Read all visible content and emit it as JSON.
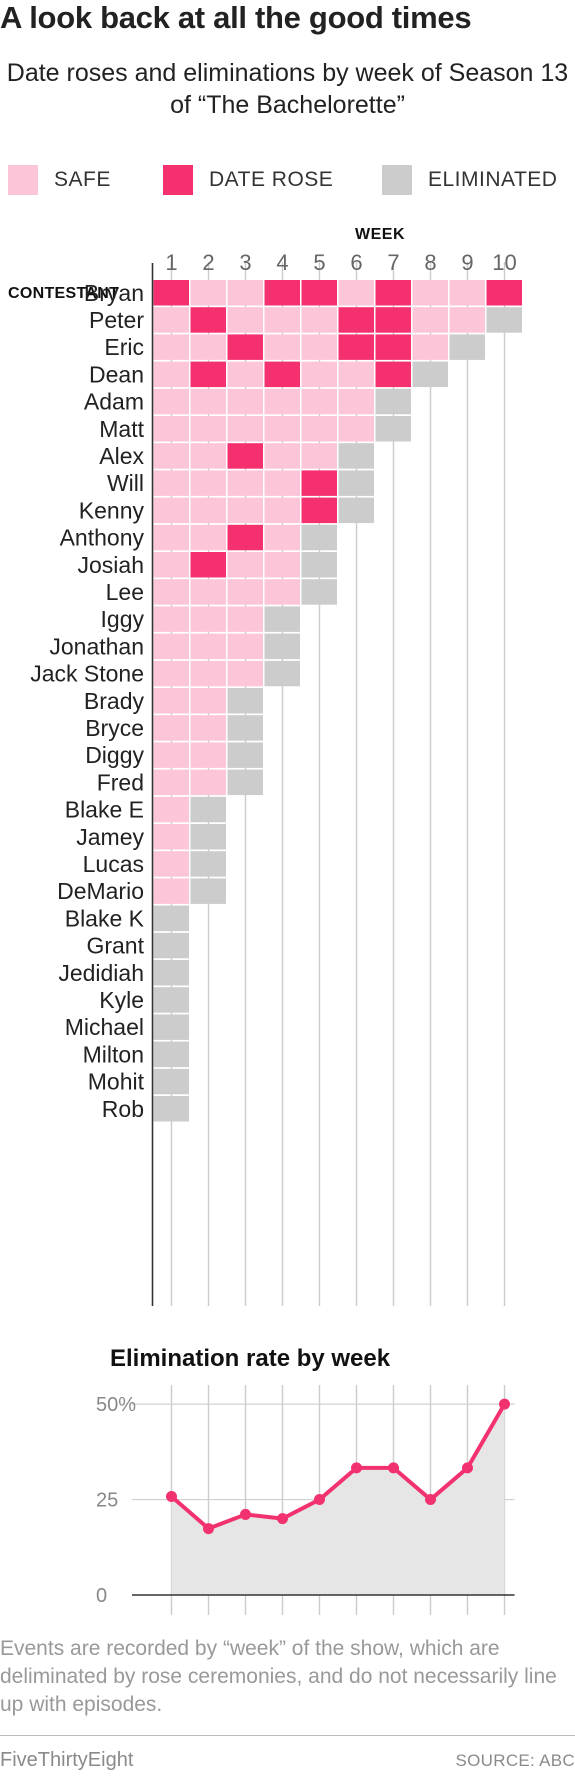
{
  "header": {
    "title": "A look back at all the good times",
    "subtitle": "Date roses and eliminations by week of Season 13 of “The Bachelorette”"
  },
  "legend": [
    {
      "label": "SAFE",
      "color": "#fcc6d8"
    },
    {
      "label": "DATE ROSE",
      "color": "#f5306f"
    },
    {
      "label": "ELIMINATED",
      "color": "#cccccc"
    }
  ],
  "colors": {
    "safe": "#fcc6d8",
    "date_rose": "#f5306f",
    "eliminated": "#cccccc",
    "line": "#f2326f",
    "area": "#e6e6e6"
  },
  "chart_data": [
    {
      "type": "heatmap",
      "xlabel": "WEEK",
      "ylabel": "CONTESTANT",
      "weeks": [
        "1",
        "2",
        "3",
        "4",
        "5",
        "6",
        "7",
        "8",
        "9",
        "10"
      ],
      "legend_placement": "top",
      "rows": [
        {
          "name": "Bryan",
          "weeks": [
            "date_rose",
            "safe",
            "safe",
            "date_rose",
            "date_rose",
            "safe",
            "date_rose",
            "safe",
            "safe",
            "date_rose"
          ]
        },
        {
          "name": "Peter",
          "weeks": [
            "safe",
            "date_rose",
            "safe",
            "safe",
            "safe",
            "date_rose",
            "date_rose",
            "safe",
            "safe",
            "eliminated"
          ]
        },
        {
          "name": "Eric",
          "weeks": [
            "safe",
            "safe",
            "date_rose",
            "safe",
            "safe",
            "date_rose",
            "date_rose",
            "safe",
            "eliminated"
          ]
        },
        {
          "name": "Dean",
          "weeks": [
            "safe",
            "date_rose",
            "safe",
            "date_rose",
            "safe",
            "safe",
            "date_rose",
            "eliminated"
          ]
        },
        {
          "name": "Adam",
          "weeks": [
            "safe",
            "safe",
            "safe",
            "safe",
            "safe",
            "safe",
            "eliminated"
          ]
        },
        {
          "name": "Matt",
          "weeks": [
            "safe",
            "safe",
            "safe",
            "safe",
            "safe",
            "safe",
            "eliminated"
          ]
        },
        {
          "name": "Alex",
          "weeks": [
            "safe",
            "safe",
            "date_rose",
            "safe",
            "safe",
            "eliminated"
          ]
        },
        {
          "name": "Will",
          "weeks": [
            "safe",
            "safe",
            "safe",
            "safe",
            "date_rose",
            "eliminated"
          ]
        },
        {
          "name": "Kenny",
          "weeks": [
            "safe",
            "safe",
            "safe",
            "safe",
            "date_rose",
            "eliminated"
          ]
        },
        {
          "name": "Anthony",
          "weeks": [
            "safe",
            "safe",
            "date_rose",
            "safe",
            "eliminated"
          ]
        },
        {
          "name": "Josiah",
          "weeks": [
            "safe",
            "date_rose",
            "safe",
            "safe",
            "eliminated"
          ]
        },
        {
          "name": "Lee",
          "weeks": [
            "safe",
            "safe",
            "safe",
            "safe",
            "eliminated"
          ]
        },
        {
          "name": "Iggy",
          "weeks": [
            "safe",
            "safe",
            "safe",
            "eliminated"
          ]
        },
        {
          "name": "Jonathan",
          "weeks": [
            "safe",
            "safe",
            "safe",
            "eliminated"
          ]
        },
        {
          "name": "Jack Stone",
          "weeks": [
            "safe",
            "safe",
            "safe",
            "eliminated"
          ]
        },
        {
          "name": "Brady",
          "weeks": [
            "safe",
            "safe",
            "eliminated"
          ]
        },
        {
          "name": "Bryce",
          "weeks": [
            "safe",
            "safe",
            "eliminated"
          ]
        },
        {
          "name": "Diggy",
          "weeks": [
            "safe",
            "safe",
            "eliminated"
          ]
        },
        {
          "name": "Fred",
          "weeks": [
            "safe",
            "safe",
            "eliminated"
          ]
        },
        {
          "name": "Blake E",
          "weeks": [
            "safe",
            "eliminated"
          ]
        },
        {
          "name": "Jamey",
          "weeks": [
            "safe",
            "eliminated"
          ]
        },
        {
          "name": "Lucas",
          "weeks": [
            "safe",
            "eliminated"
          ]
        },
        {
          "name": "DeMario",
          "weeks": [
            "safe",
            "eliminated"
          ]
        },
        {
          "name": "Blake K",
          "weeks": [
            "eliminated"
          ]
        },
        {
          "name": "Grant",
          "weeks": [
            "eliminated"
          ]
        },
        {
          "name": "Jedidiah",
          "weeks": [
            "eliminated"
          ]
        },
        {
          "name": "Kyle",
          "weeks": [
            "eliminated"
          ]
        },
        {
          "name": "Michael",
          "weeks": [
            "eliminated"
          ]
        },
        {
          "name": "Milton",
          "weeks": [
            "eliminated"
          ]
        },
        {
          "name": "Mohit",
          "weeks": [
            "eliminated"
          ]
        },
        {
          "name": "Rob",
          "weeks": [
            "eliminated"
          ]
        }
      ]
    },
    {
      "type": "area",
      "title": "Elimination rate by week",
      "x": [
        1,
        2,
        3,
        4,
        5,
        6,
        7,
        8,
        9,
        10
      ],
      "values": [
        25.8,
        17.4,
        21.1,
        20.0,
        25.0,
        33.3,
        33.3,
        25.0,
        33.3,
        50.0
      ],
      "ylim": [
        0,
        55
      ],
      "yticks": [
        0,
        25,
        50
      ],
      "ytick_labels": [
        "0",
        "25",
        "50%"
      ],
      "grid": true
    }
  ],
  "footnote": "Events are recorded by “week” of the show, which are deliminated by rose ceremonies, and do not necessarily line up with episodes.",
  "footer": {
    "brand": "FiveThirtyEight",
    "source": "SOURCE: ABC"
  }
}
